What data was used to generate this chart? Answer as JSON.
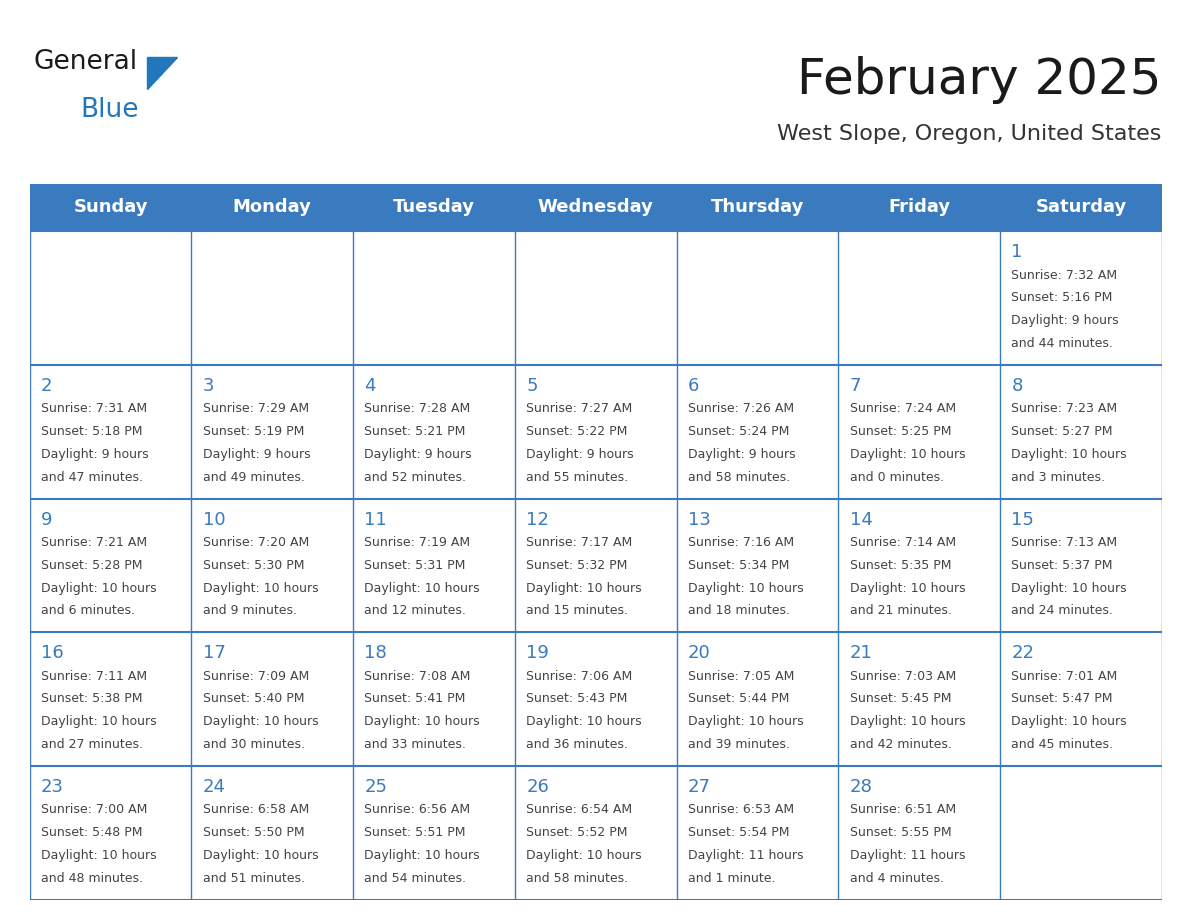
{
  "title": "February 2025",
  "subtitle": "West Slope, Oregon, United States",
  "days_of_week": [
    "Sunday",
    "Monday",
    "Tuesday",
    "Wednesday",
    "Thursday",
    "Friday",
    "Saturday"
  ],
  "header_bg": "#3a7abf",
  "header_text": "#ffffff",
  "cell_bg_even": "#f2f2f2",
  "cell_bg_odd": "#ffffff",
  "cell_border": "#3a7abf",
  "day_number_color": "#3a7abf",
  "info_text_color": "#444444",
  "title_color": "#1a1a1a",
  "subtitle_color": "#333333",
  "logo_general_color": "#1a1a1a",
  "logo_blue_color": "#2277bb",
  "calendar_data": [
    [
      null,
      null,
      null,
      null,
      null,
      null,
      {
        "day": "1",
        "sunrise": "7:32 AM",
        "sunset": "5:16 PM",
        "daylight": "9 hours\nand 44 minutes."
      }
    ],
    [
      {
        "day": "2",
        "sunrise": "7:31 AM",
        "sunset": "5:18 PM",
        "daylight": "9 hours\nand 47 minutes."
      },
      {
        "day": "3",
        "sunrise": "7:29 AM",
        "sunset": "5:19 PM",
        "daylight": "9 hours\nand 49 minutes."
      },
      {
        "day": "4",
        "sunrise": "7:28 AM",
        "sunset": "5:21 PM",
        "daylight": "9 hours\nand 52 minutes."
      },
      {
        "day": "5",
        "sunrise": "7:27 AM",
        "sunset": "5:22 PM",
        "daylight": "9 hours\nand 55 minutes."
      },
      {
        "day": "6",
        "sunrise": "7:26 AM",
        "sunset": "5:24 PM",
        "daylight": "9 hours\nand 58 minutes."
      },
      {
        "day": "7",
        "sunrise": "7:24 AM",
        "sunset": "5:25 PM",
        "daylight": "10 hours\nand 0 minutes."
      },
      {
        "day": "8",
        "sunrise": "7:23 AM",
        "sunset": "5:27 PM",
        "daylight": "10 hours\nand 3 minutes."
      }
    ],
    [
      {
        "day": "9",
        "sunrise": "7:21 AM",
        "sunset": "5:28 PM",
        "daylight": "10 hours\nand 6 minutes."
      },
      {
        "day": "10",
        "sunrise": "7:20 AM",
        "sunset": "5:30 PM",
        "daylight": "10 hours\nand 9 minutes."
      },
      {
        "day": "11",
        "sunrise": "7:19 AM",
        "sunset": "5:31 PM",
        "daylight": "10 hours\nand 12 minutes."
      },
      {
        "day": "12",
        "sunrise": "7:17 AM",
        "sunset": "5:32 PM",
        "daylight": "10 hours\nand 15 minutes."
      },
      {
        "day": "13",
        "sunrise": "7:16 AM",
        "sunset": "5:34 PM",
        "daylight": "10 hours\nand 18 minutes."
      },
      {
        "day": "14",
        "sunrise": "7:14 AM",
        "sunset": "5:35 PM",
        "daylight": "10 hours\nand 21 minutes."
      },
      {
        "day": "15",
        "sunrise": "7:13 AM",
        "sunset": "5:37 PM",
        "daylight": "10 hours\nand 24 minutes."
      }
    ],
    [
      {
        "day": "16",
        "sunrise": "7:11 AM",
        "sunset": "5:38 PM",
        "daylight": "10 hours\nand 27 minutes."
      },
      {
        "day": "17",
        "sunrise": "7:09 AM",
        "sunset": "5:40 PM",
        "daylight": "10 hours\nand 30 minutes."
      },
      {
        "day": "18",
        "sunrise": "7:08 AM",
        "sunset": "5:41 PM",
        "daylight": "10 hours\nand 33 minutes."
      },
      {
        "day": "19",
        "sunrise": "7:06 AM",
        "sunset": "5:43 PM",
        "daylight": "10 hours\nand 36 minutes."
      },
      {
        "day": "20",
        "sunrise": "7:05 AM",
        "sunset": "5:44 PM",
        "daylight": "10 hours\nand 39 minutes."
      },
      {
        "day": "21",
        "sunrise": "7:03 AM",
        "sunset": "5:45 PM",
        "daylight": "10 hours\nand 42 minutes."
      },
      {
        "day": "22",
        "sunrise": "7:01 AM",
        "sunset": "5:47 PM",
        "daylight": "10 hours\nand 45 minutes."
      }
    ],
    [
      {
        "day": "23",
        "sunrise": "7:00 AM",
        "sunset": "5:48 PM",
        "daylight": "10 hours\nand 48 minutes."
      },
      {
        "day": "24",
        "sunrise": "6:58 AM",
        "sunset": "5:50 PM",
        "daylight": "10 hours\nand 51 minutes."
      },
      {
        "day": "25",
        "sunrise": "6:56 AM",
        "sunset": "5:51 PM",
        "daylight": "10 hours\nand 54 minutes."
      },
      {
        "day": "26",
        "sunrise": "6:54 AM",
        "sunset": "5:52 PM",
        "daylight": "10 hours\nand 58 minutes."
      },
      {
        "day": "27",
        "sunrise": "6:53 AM",
        "sunset": "5:54 PM",
        "daylight": "11 hours\nand 1 minute."
      },
      {
        "day": "28",
        "sunrise": "6:51 AM",
        "sunset": "5:55 PM",
        "daylight": "11 hours\nand 4 minutes."
      },
      null
    ]
  ],
  "fig_width": 11.88,
  "fig_height": 9.18,
  "dpi": 100
}
